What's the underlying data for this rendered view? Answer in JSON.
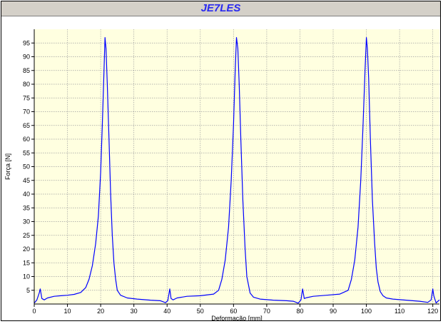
{
  "chart_data": {
    "type": "line",
    "title": "JE7LES",
    "xlabel": "Deformação [mm]",
    "ylabel": "Força [N]",
    "xlim": [
      0,
      122
    ],
    "ylim": [
      0,
      100
    ],
    "xticks": [
      0,
      10,
      20,
      30,
      40,
      50,
      60,
      70,
      80,
      90,
      100,
      110,
      120
    ],
    "yticks": [
      5,
      10,
      15,
      20,
      25,
      30,
      35,
      40,
      45,
      50,
      55,
      60,
      65,
      70,
      75,
      80,
      85,
      90,
      95
    ],
    "grid": true,
    "plot_background": "#ffffe0",
    "series": [
      {
        "color": "#0000ff",
        "x": [
          0,
          0.8,
          1.5,
          1.8,
          2.3,
          3.0,
          4.0,
          6.0,
          8.0,
          10.0,
          12.0,
          14.0,
          15.5,
          16.5,
          17.5,
          18.5,
          19.3,
          20.0,
          20.5,
          21.0,
          21.3,
          21.6,
          22.0,
          22.5,
          23.0,
          23.5,
          24.0,
          24.5,
          25.0,
          26.0,
          28.0,
          31.0,
          35.0,
          38.0,
          39.5,
          40.2,
          40.8,
          41.2,
          41.8,
          43.0,
          46.0,
          50.0,
          54.0,
          55.5,
          56.5,
          57.5,
          58.5,
          59.3,
          60.0,
          60.5,
          60.9,
          61.3,
          61.7,
          62.2,
          62.8,
          63.5,
          64.0,
          65.0,
          66.0,
          68.0,
          72.0,
          76.0,
          78.0,
          79.5,
          80.3,
          80.8,
          81.3,
          82.0,
          84.0,
          88.0,
          92.0,
          94.5,
          95.5,
          96.5,
          97.5,
          98.3,
          99.0,
          99.6,
          100.0,
          100.3,
          100.7,
          101.2,
          101.8,
          102.5,
          103.0,
          103.5,
          104.2,
          105.0,
          106.0,
          108.0,
          112.0,
          116.0,
          118.5,
          119.5,
          120.0,
          120.3,
          121.0,
          122.0
        ],
        "y": [
          0.3,
          1.5,
          4.0,
          5.5,
          2.0,
          1.5,
          2.2,
          2.8,
          3.0,
          3.2,
          3.5,
          4.2,
          6.0,
          9.0,
          14.0,
          22.0,
          32.0,
          48.0,
          65.0,
          85.0,
          97.0,
          93.0,
          80.0,
          60.0,
          40.0,
          25.0,
          15.0,
          9.0,
          5.0,
          3.2,
          2.2,
          1.8,
          1.4,
          1.2,
          0.5,
          1.2,
          5.5,
          2.0,
          1.5,
          2.2,
          2.8,
          3.0,
          3.6,
          5.0,
          9.0,
          16.0,
          28.0,
          45.0,
          65.0,
          85.0,
          97.0,
          93.0,
          80.0,
          60.0,
          38.0,
          20.0,
          10.0,
          4.0,
          2.5,
          1.8,
          1.4,
          1.2,
          1.0,
          0.3,
          1.5,
          5.5,
          2.0,
          2.3,
          2.8,
          3.2,
          3.6,
          5.0,
          9.0,
          16.0,
          28.0,
          45.0,
          65.0,
          85.0,
          97.0,
          93.0,
          82.0,
          60.0,
          38.0,
          22.0,
          13.0,
          8.0,
          4.5,
          3.0,
          2.2,
          1.8,
          1.4,
          1.0,
          0.6,
          1.5,
          5.5,
          3.0,
          0.4,
          1.5
        ]
      }
    ]
  }
}
